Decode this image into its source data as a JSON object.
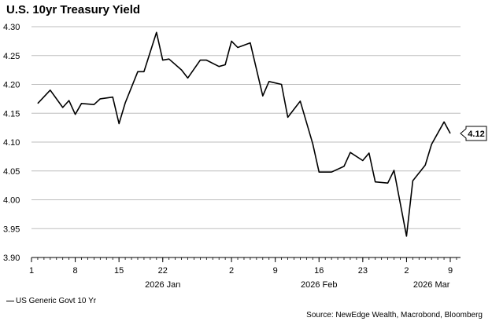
{
  "chart_data": {
    "type": "line",
    "title": "U.S. 10yr Treasury Yield",
    "xlabel": "",
    "ylabel": "",
    "ylim": [
      3.9,
      4.3
    ],
    "yticks": [
      "3.90",
      "3.95",
      "4.00",
      "4.05",
      "4.10",
      "4.15",
      "4.20",
      "4.25",
      "4.30"
    ],
    "xticks": [
      {
        "date": "2026-01-01",
        "label": "1"
      },
      {
        "date": "2026-01-08",
        "label": "8"
      },
      {
        "date": "2026-01-15",
        "label": "15"
      },
      {
        "date": "2026-01-22",
        "label": "22"
      },
      {
        "date": "2026-02-02",
        "label": "2"
      },
      {
        "date": "2026-02-09",
        "label": "9"
      },
      {
        "date": "2026-02-16",
        "label": "16"
      },
      {
        "date": "2026-02-23",
        "label": "23"
      },
      {
        "date": "2026-03-02",
        "label": "2"
      },
      {
        "date": "2026-03-09",
        "label": "9"
      }
    ],
    "month_labels": [
      {
        "date": "2026-01-22",
        "label": "2026 Jan"
      },
      {
        "date": "2026-02-16",
        "label": "2026 Feb"
      },
      {
        "date": "2026-03-06",
        "label": "2026 Mar"
      }
    ],
    "grid": true,
    "legend_position": "bottom-left",
    "last_value_label": "4.12",
    "series": [
      {
        "name": "US Generic Govt 10 Yr",
        "color": "#000000",
        "x": [
          "2026-01-02",
          "2026-01-04",
          "2026-01-06",
          "2026-01-07",
          "2026-01-08",
          "2026-01-09",
          "2026-01-11",
          "2026-01-12",
          "2026-01-14",
          "2026-01-15",
          "2026-01-16",
          "2026-01-18",
          "2026-01-19",
          "2026-01-21",
          "2026-01-22",
          "2026-01-23",
          "2026-01-25",
          "2026-01-26",
          "2026-01-28",
          "2026-01-29",
          "2026-01-31",
          "2026-02-01",
          "2026-02-02",
          "2026-02-03",
          "2026-02-05",
          "2026-02-07",
          "2026-02-08",
          "2026-02-10",
          "2026-02-11",
          "2026-02-13",
          "2026-02-15",
          "2026-02-16",
          "2026-02-18",
          "2026-02-20",
          "2026-02-21",
          "2026-02-23",
          "2026-02-24",
          "2026-02-25",
          "2026-02-27",
          "2026-02-28",
          "2026-03-02",
          "2026-03-03",
          "2026-03-05",
          "2026-03-06",
          "2026-03-08",
          "2026-03-09"
        ],
        "values": [
          4.167,
          4.19,
          4.16,
          4.172,
          4.148,
          4.167,
          4.165,
          4.175,
          4.178,
          4.132,
          4.168,
          4.222,
          4.222,
          4.29,
          4.242,
          4.244,
          4.225,
          4.211,
          4.242,
          4.242,
          4.231,
          4.234,
          4.275,
          4.264,
          4.272,
          4.18,
          4.205,
          4.2,
          4.143,
          4.171,
          4.097,
          4.048,
          4.048,
          4.058,
          4.082,
          4.068,
          4.081,
          4.031,
          4.029,
          4.051,
          3.937,
          4.033,
          4.06,
          4.096,
          4.135,
          4.115
        ]
      }
    ],
    "source": "Source: NewEdge Wealth, Macrobond, Bloomberg"
  }
}
